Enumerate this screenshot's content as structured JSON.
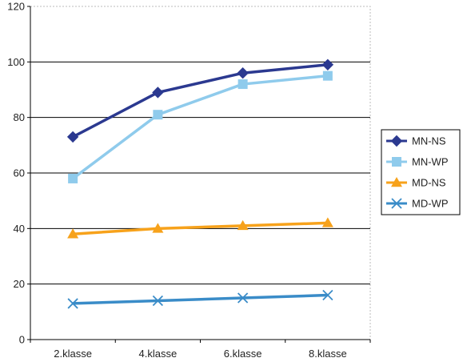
{
  "chart_data": {
    "type": "line",
    "categories": [
      "2.klasse",
      "4.klasse",
      "6.klasse",
      "8.klasse"
    ],
    "ylim": [
      0,
      120
    ],
    "yticks": [
      0,
      20,
      40,
      60,
      80,
      100,
      120
    ],
    "grid": true,
    "legend_position": "right",
    "series": [
      {
        "name": "MN-NS",
        "values": [
          73,
          89,
          96,
          99
        ],
        "color": "#2b3990",
        "marker": "diamond"
      },
      {
        "name": "MN-WP",
        "values": [
          58,
          81,
          92,
          95
        ],
        "color": "#8fcbec",
        "marker": "square"
      },
      {
        "name": "MD-NS",
        "values": [
          38,
          40,
          41,
          42
        ],
        "color": "#f7a21b",
        "marker": "triangle"
      },
      {
        "name": "MD-WP",
        "values": [
          13,
          14,
          15,
          16
        ],
        "color": "#3a8cc8",
        "marker": "x"
      }
    ]
  }
}
